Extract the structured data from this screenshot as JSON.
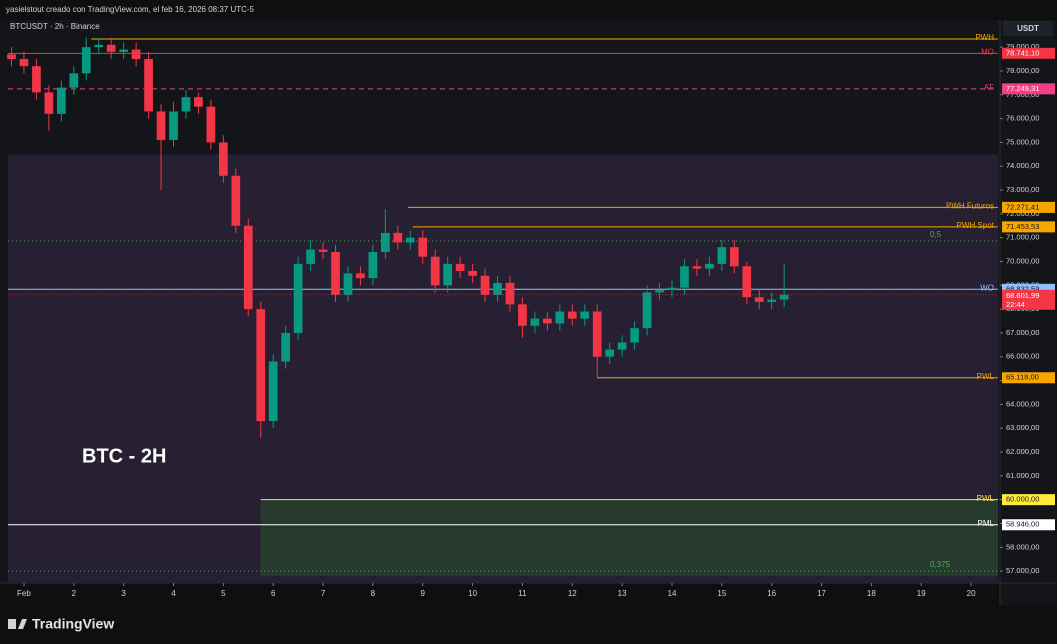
{
  "header": {
    "credit": "yasielstout creado con TradingView.com, el feb 16, 2026 08:37 UTC-5"
  },
  "footer": {
    "brand": "TradingView"
  },
  "chart_data": {
    "type": "candlestick",
    "title": "BTCUSDT · 2h · Binance",
    "annotation": "BTC - 2H",
    "currency": "USDT",
    "xlim": [
      0.68,
      20.54
    ],
    "xticks": [
      {
        "value": 1,
        "label": "Feb"
      },
      2,
      3,
      4,
      5,
      6,
      7,
      8,
      9,
      10,
      11,
      12,
      13,
      14,
      15,
      16,
      17,
      18,
      19,
      20
    ],
    "ylim": [
      56500,
      80140
    ],
    "yticks": [
      {
        "value": 57000,
        "label": "57.000,00"
      },
      {
        "value": 58000,
        "label": "58.000,00"
      },
      {
        "value": 59000,
        "label": "59.000,00"
      },
      {
        "value": 60000,
        "label": "60.000,00"
      },
      {
        "value": 61000,
        "label": "61.000,00"
      },
      {
        "value": 62000,
        "label": "62.000,00"
      },
      {
        "value": 63000,
        "label": "63.000,00"
      },
      {
        "value": 64000,
        "label": "64.000,00"
      },
      {
        "value": 65000,
        "label": "65.000,00"
      },
      {
        "value": 66000,
        "label": "66.000,00"
      },
      {
        "value": 67000,
        "label": "67.000,00"
      },
      {
        "value": 68000,
        "label": "68.000,00"
      },
      {
        "value": 69000,
        "label": "69.000,00"
      },
      {
        "value": 70000,
        "label": "70.000,00"
      },
      {
        "value": 71000,
        "label": "71.000,00"
      },
      {
        "value": 72000,
        "label": "72.000,00"
      },
      {
        "value": 73000,
        "label": "73.000,00"
      },
      {
        "value": 74000,
        "label": "74.000,00"
      },
      {
        "value": 75000,
        "label": "75.000,00"
      },
      {
        "value": 76000,
        "label": "76.000,00"
      },
      {
        "value": 77000,
        "label": "77.000,00"
      },
      {
        "value": 78000,
        "label": "78.000,00"
      },
      {
        "value": 79000,
        "label": "79.000,00"
      }
    ],
    "up_color": "#089981",
    "down_color": "#f23645",
    "x": [
      0.75,
      1,
      1.25,
      1.5,
      1.75,
      2,
      2.25,
      2.5,
      2.75,
      3,
      3.25,
      3.5,
      3.75,
      4,
      4.25,
      4.5,
      4.75,
      5,
      5.25,
      5.5,
      5.75,
      6,
      6.25,
      6.5,
      6.75,
      7,
      7.25,
      7.5,
      7.75,
      8,
      8.25,
      8.5,
      8.75,
      9,
      9.25,
      9.5,
      9.75,
      10,
      10.25,
      10.5,
      10.75,
      11,
      11.25,
      11.5,
      11.75,
      12,
      12.25,
      12.5,
      12.75,
      13,
      13.25,
      13.5,
      13.75,
      14,
      14.25,
      14.5,
      14.75,
      15,
      15.25,
      15.5,
      15.75,
      16,
      16.25
    ],
    "open": [
      78700,
      78500,
      78200,
      77100,
      76200,
      77300,
      77900,
      79000,
      79100,
      78800,
      78900,
      78500,
      76300,
      75100,
      76300,
      76900,
      76500,
      75000,
      73600,
      71500,
      68000,
      63300,
      65800,
      67000,
      69900,
      70500,
      70400,
      68600,
      69500,
      69300,
      70400,
      71200,
      70800,
      71000,
      70200,
      69000,
      69900,
      69600,
      69400,
      68600,
      69100,
      68200,
      67300,
      67600,
      67400,
      67900,
      67600,
      67900,
      66000,
      66300,
      66600,
      67200,
      68700,
      68800,
      68900,
      69800,
      69700,
      69900,
      70600,
      69800,
      68500,
      68300,
      68400
    ],
    "high": [
      79000,
      78800,
      78500,
      77400,
      77600,
      78200,
      79400,
      79400,
      79400,
      79200,
      79200,
      78800,
      76600,
      76700,
      77200,
      77100,
      76800,
      75300,
      73900,
      71800,
      68300,
      66100,
      67300,
      70200,
      70900,
      70800,
      70700,
      69800,
      69800,
      70700,
      72200,
      71500,
      71300,
      71300,
      70500,
      70200,
      70200,
      69900,
      69700,
      69400,
      69400,
      68500,
      67900,
      67900,
      68200,
      68200,
      68200,
      68200,
      66600,
      66900,
      67500,
      69000,
      69100,
      69200,
      70100,
      70100,
      70200,
      70900,
      70900,
      70000,
      68800,
      68700,
      69900
    ],
    "low": [
      78200,
      77900,
      76800,
      75500,
      75900,
      77000,
      77600,
      78700,
      78500,
      78500,
      78200,
      76000,
      73000,
      74800,
      76000,
      76200,
      74700,
      73300,
      71200,
      67700,
      62600,
      63000,
      65500,
      66700,
      69600,
      70100,
      68300,
      68300,
      69000,
      69000,
      70100,
      70500,
      70500,
      69900,
      68700,
      68700,
      69300,
      69100,
      68300,
      68300,
      67900,
      66800,
      67000,
      67100,
      67100,
      67300,
      67300,
      65100,
      65700,
      66000,
      66300,
      66900,
      68400,
      68500,
      68600,
      69400,
      69400,
      69600,
      69500,
      68200,
      68000,
      68000,
      68100
    ],
    "close": [
      78500,
      78200,
      77100,
      76200,
      77300,
      77900,
      79000,
      79100,
      78800,
      78900,
      78500,
      76300,
      75100,
      76300,
      76900,
      76500,
      75000,
      73600,
      71500,
      68000,
      63300,
      65800,
      67000,
      69900,
      70500,
      70400,
      68600,
      69500,
      69300,
      70400,
      71200,
      70800,
      71000,
      70200,
      69000,
      69900,
      69600,
      69400,
      68600,
      69100,
      68200,
      67300,
      67600,
      67400,
      67900,
      67600,
      67900,
      66000,
      66300,
      66600,
      67200,
      68700,
      68800,
      68900,
      69800,
      69700,
      69900,
      70600,
      69800,
      68500,
      68300,
      68400,
      68601.99
    ],
    "zones": [
      {
        "top": 74500,
        "bottom": 56500,
        "from": 0.68,
        "color": "#272033"
      },
      {
        "top": 60000,
        "bottom": 56800,
        "from": 5.75,
        "color": "#263a2d"
      }
    ],
    "levels": [
      {
        "name": "PWH",
        "value": 79344,
        "from": 2.35,
        "color": "#f7a600"
      },
      {
        "name": "MO",
        "value": 78741.1,
        "value_label": "78.741,10",
        "from": 0.68,
        "color": "#f23645"
      },
      {
        "name": "AF",
        "value": 77249.31,
        "value_label": "77.249,31",
        "from": 0.68,
        "color": "#f23f86",
        "dashed": true
      },
      {
        "name": "PWH Futuros",
        "value": 72271.41,
        "value_label": "72.271,41",
        "from": 8.7,
        "color": "#f7a600"
      },
      {
        "name": "PWH Spot",
        "value": 71453.53,
        "value_label": "71.453,53",
        "from": 8.8,
        "color": "#f7a600"
      },
      {
        "name": "0,5",
        "value": 70860,
        "from": 0.68,
        "color": "#4caf50",
        "dotted": true
      },
      {
        "name": "WO",
        "value": 68832.59,
        "value_label": "68.832,59",
        "from": 0.68,
        "color": "#90bff9"
      },
      {
        "name": "PWL",
        "value": 65118,
        "value_label": "65.118,00",
        "from": 12.5,
        "color": "#f7a600"
      },
      {
        "name": "PWL",
        "value": 60000,
        "value_label": "60.000,00",
        "from": 5.75,
        "color": "#ffeb3b"
      },
      {
        "name": "PML",
        "value": 58946,
        "value_label": "58.946,00",
        "from": 0.68,
        "color": "#ffffff"
      },
      {
        "name": "0,375",
        "value": 57000,
        "from": 0.68,
        "color": "#4caf50",
        "dotted": true
      }
    ],
    "current": {
      "value": 68601.99,
      "value_label": "68.601,99",
      "countdown": "22:44",
      "color": "#f23645"
    }
  }
}
